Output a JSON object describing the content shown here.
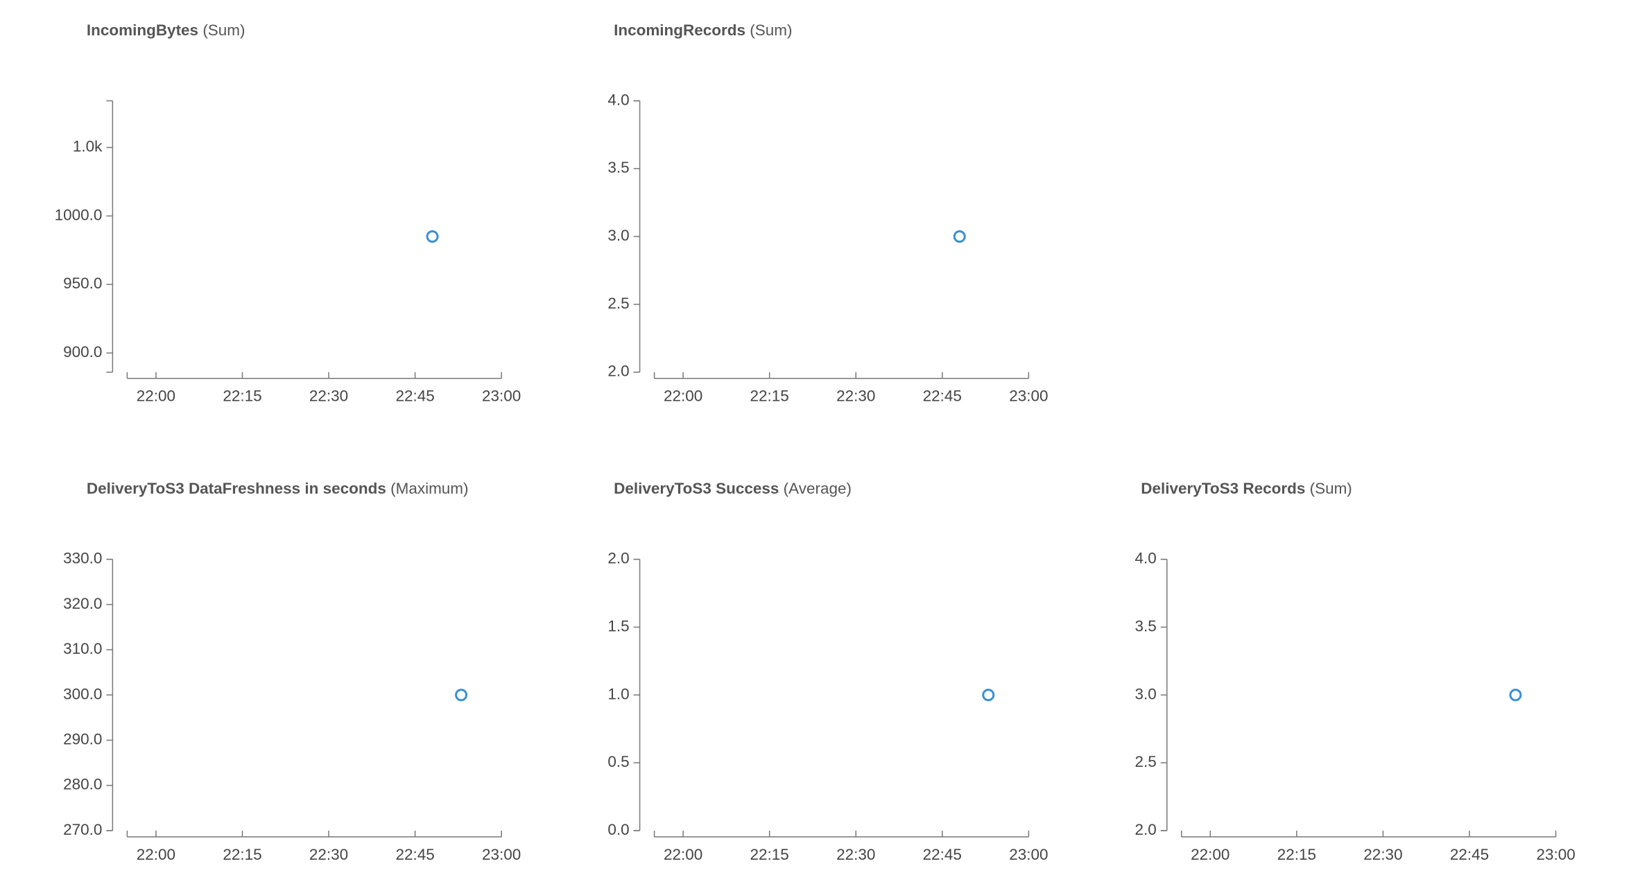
{
  "chart_data": [
    {
      "type": "scatter",
      "title": "IncomingBytes",
      "stat": "(Sum)",
      "x": [
        "22:48"
      ],
      "values": [
        985
      ],
      "color": "#3b8fd0",
      "xlim": [
        "21:55",
        "23:00"
      ],
      "xticks": [
        "22:00",
        "22:15",
        "22:30",
        "22:45",
        "23:00"
      ],
      "ylim": [
        886,
        1084
      ],
      "yticks": [
        {
          "value": 900,
          "label": "900.0"
        },
        {
          "value": 950,
          "label": "950.0"
        },
        {
          "value": 1000,
          "label": "1000.0"
        },
        {
          "value": 1050,
          "label": "1.0k"
        }
      ]
    },
    {
      "type": "scatter",
      "title": "IncomingRecords",
      "stat": "(Sum)",
      "x": [
        "22:48"
      ],
      "values": [
        3
      ],
      "color": "#3b8fd0",
      "xlim": [
        "21:55",
        "23:00"
      ],
      "xticks": [
        "22:00",
        "22:15",
        "22:30",
        "22:45",
        "23:00"
      ],
      "ylim": [
        2,
        4
      ],
      "yticks": [
        {
          "value": 2,
          "label": "2.0"
        },
        {
          "value": 2.5,
          "label": "2.5"
        },
        {
          "value": 3,
          "label": "3.0"
        },
        {
          "value": 3.5,
          "label": "3.5"
        },
        {
          "value": 4,
          "label": "4.0"
        }
      ]
    },
    {
      "type": "scatter",
      "title": "DeliveryToS3 DataFreshness in seconds",
      "stat": "(Maximum)",
      "x": [
        "22:53"
      ],
      "values": [
        300
      ],
      "color": "#3b8fd0",
      "xlim": [
        "21:55",
        "23:00"
      ],
      "xticks": [
        "22:00",
        "22:15",
        "22:30",
        "22:45",
        "23:00"
      ],
      "ylim": [
        270,
        330
      ],
      "yticks": [
        {
          "value": 270,
          "label": "270.0"
        },
        {
          "value": 280,
          "label": "280.0"
        },
        {
          "value": 290,
          "label": "290.0"
        },
        {
          "value": 300,
          "label": "300.0"
        },
        {
          "value": 310,
          "label": "310.0"
        },
        {
          "value": 320,
          "label": "320.0"
        },
        {
          "value": 330,
          "label": "330.0"
        }
      ]
    },
    {
      "type": "scatter",
      "title": "DeliveryToS3 Success",
      "stat": "(Average)",
      "x": [
        "22:53"
      ],
      "values": [
        1
      ],
      "color": "#3b8fd0",
      "xlim": [
        "21:55",
        "23:00"
      ],
      "xticks": [
        "22:00",
        "22:15",
        "22:30",
        "22:45",
        "23:00"
      ],
      "ylim": [
        0,
        2
      ],
      "yticks": [
        {
          "value": 0,
          "label": "0.0"
        },
        {
          "value": 0.5,
          "label": "0.5"
        },
        {
          "value": 1,
          "label": "1.0"
        },
        {
          "value": 1.5,
          "label": "1.5"
        },
        {
          "value": 2,
          "label": "2.0"
        }
      ]
    },
    {
      "type": "scatter",
      "title": "DeliveryToS3 Records",
      "stat": "(Sum)",
      "x": [
        "22:53"
      ],
      "values": [
        3
      ],
      "color": "#3b8fd0",
      "xlim": [
        "21:55",
        "23:00"
      ],
      "xticks": [
        "22:00",
        "22:15",
        "22:30",
        "22:45",
        "23:00"
      ],
      "ylim": [
        2,
        4
      ],
      "yticks": [
        {
          "value": 2,
          "label": "2.0"
        },
        {
          "value": 2.5,
          "label": "2.5"
        },
        {
          "value": 3,
          "label": "3.0"
        },
        {
          "value": 3.5,
          "label": "3.5"
        },
        {
          "value": 4,
          "label": "4.0"
        }
      ]
    }
  ]
}
